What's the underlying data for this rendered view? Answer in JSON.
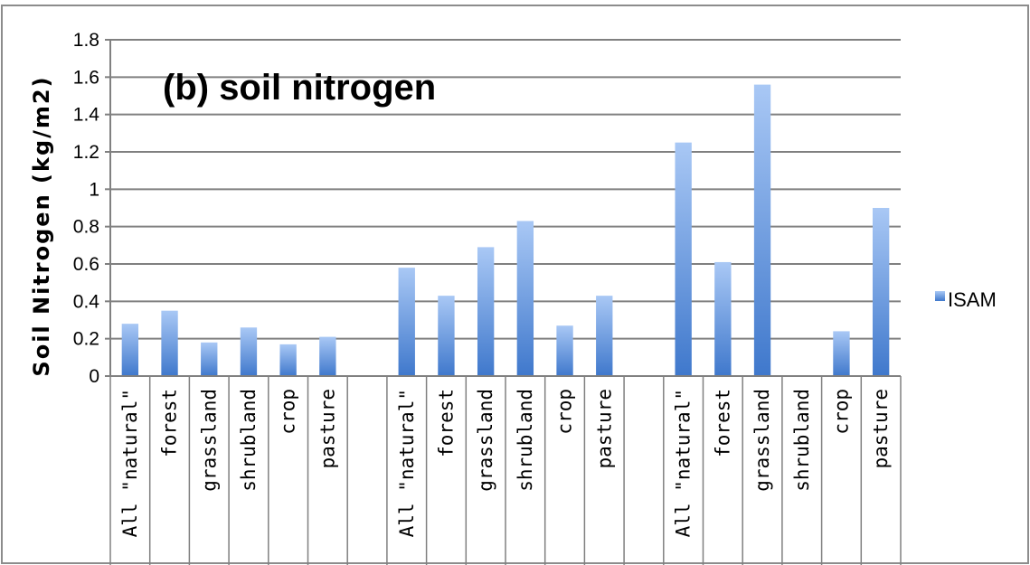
{
  "chart_data": {
    "type": "bar",
    "title": "(b) soil nitrogen",
    "ylabel": "Soil Nitrogen (kg/m2)",
    "xlabel": "",
    "ylim": [
      0,
      1.8
    ],
    "yticks": [
      "0",
      "0.2",
      "0.4",
      "0.6",
      "0.8",
      "1",
      "1.2",
      "1.4",
      "1.6",
      "1.8"
    ],
    "grid": true,
    "legend_position": "right",
    "categories": [
      "All \"natural\"",
      "forest",
      "grassland",
      "shrubland",
      "crop",
      "pasture",
      "",
      "All \"natural\"",
      "forest",
      "grassland",
      "shrubland",
      "crop",
      "pasture",
      "",
      "All \"natural\"",
      "forest",
      "grassland",
      "shrubland",
      "crop",
      "pasture"
    ],
    "series": [
      {
        "name": "ISAM",
        "color": "#5b8fd8",
        "values": [
          0.28,
          0.35,
          0.18,
          0.26,
          0.17,
          0.21,
          null,
          0.58,
          0.43,
          0.69,
          0.83,
          0.27,
          0.43,
          null,
          1.25,
          0.61,
          1.56,
          null,
          0.24,
          0.9
        ]
      }
    ]
  }
}
